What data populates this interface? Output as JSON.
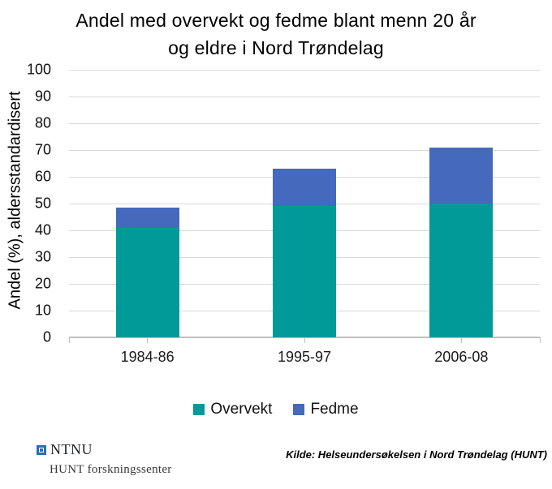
{
  "chart_data": {
    "type": "bar",
    "stacked": true,
    "title_lines": [
      "Andel med overvekt og fedme blant menn 20 år",
      "og eldre i Nord Trøndelag"
    ],
    "categories": [
      "1984-86",
      "1995-97",
      "2006-08"
    ],
    "series": [
      {
        "name": "Overvekt",
        "color": "#009b98",
        "values": [
          41,
          49,
          50
        ]
      },
      {
        "name": "Fedme",
        "color": "#4469bd",
        "values": [
          7.5,
          14,
          21
        ]
      }
    ],
    "totals": [
      48.5,
      63,
      71
    ],
    "xlabel": "",
    "ylabel": "Andel (%), aldersstandardisert",
    "ylim": [
      0,
      100
    ],
    "ytick_step": 10,
    "grid": true,
    "legend_position": "bottom",
    "gridline_color": "#d9d9d9",
    "axis_line_color": "#bfbfbf"
  },
  "footer": {
    "logo_text": "NTNU",
    "logo_subtext": "HUNT forskningssenter",
    "source": "Kilde: Helseundersøkelsen i Nord Trøndelag (HUNT)"
  }
}
